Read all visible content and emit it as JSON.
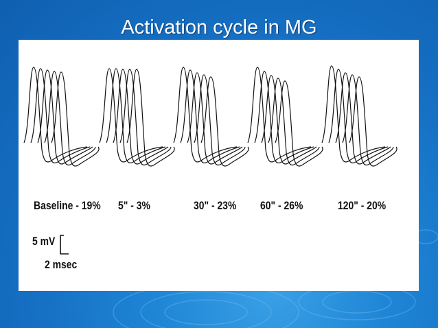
{
  "slide": {
    "title": "Activation cycle in MG"
  },
  "figure": {
    "conditions": [
      {
        "label": "Baseline - 19%"
      },
      {
        "label": "5\" - 3%"
      },
      {
        "label": "30\" - 23%"
      },
      {
        "label": "60\" - 26%"
      },
      {
        "label": "120\" - 20%"
      }
    ],
    "scale": {
      "voltage": "5 mV",
      "time": "2 msec"
    }
  },
  "colors": {
    "background": "#1670c4",
    "panel": "#ffffff",
    "trace": "#111111"
  }
}
